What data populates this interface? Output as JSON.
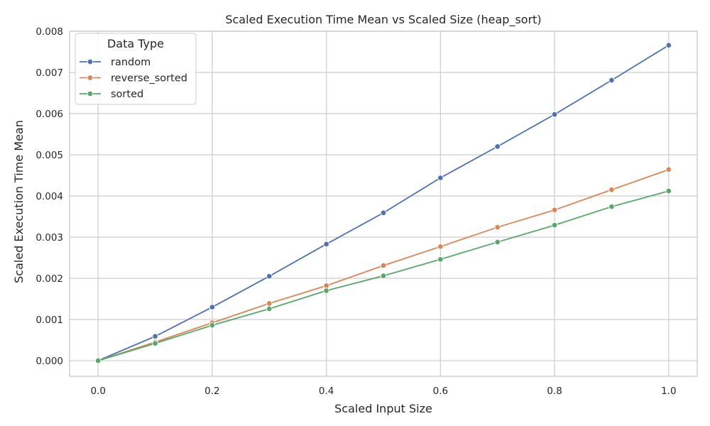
{
  "chart_data": {
    "type": "line",
    "title": "Scaled Execution Time Mean vs Scaled Size (heap_sort)",
    "xlabel": "Scaled Input Size",
    "ylabel": "Scaled Execution Time Mean",
    "xlim": [
      -0.05,
      1.05
    ],
    "ylim": [
      -0.00038,
      0.008
    ],
    "xticks": [
      0.0,
      0.2,
      0.4,
      0.6,
      0.8,
      1.0
    ],
    "xtick_labels": [
      "0.0",
      "0.2",
      "0.4",
      "0.6",
      "0.8",
      "1.0"
    ],
    "yticks": [
      0.0,
      0.001,
      0.002,
      0.003,
      0.004,
      0.005,
      0.006,
      0.007,
      0.008
    ],
    "ytick_labels": [
      "0.000",
      "0.001",
      "0.002",
      "0.003",
      "0.004",
      "0.005",
      "0.006",
      "0.007",
      "0.008"
    ],
    "grid": true,
    "legend": {
      "title": "Data Type",
      "placement": "top-left"
    },
    "x": [
      0.0,
      0.1,
      0.2,
      0.3,
      0.4,
      0.5,
      0.6,
      0.7,
      0.8,
      0.9,
      1.0
    ],
    "series": [
      {
        "name": "random",
        "color": "#4c72b0",
        "values": [
          0.0,
          0.00059,
          0.0013,
          0.00205,
          0.00283,
          0.00359,
          0.00444,
          0.0052,
          0.00598,
          0.00681,
          0.00766
        ]
      },
      {
        "name": "reverse_sorted",
        "color": "#dd8452",
        "values": [
          0.0,
          0.00045,
          0.00092,
          0.00139,
          0.00182,
          0.00231,
          0.00277,
          0.00324,
          0.00366,
          0.00415,
          0.00464
        ]
      },
      {
        "name": "sorted",
        "color": "#55a868",
        "values": [
          0.0,
          0.00042,
          0.00086,
          0.00126,
          0.0017,
          0.00206,
          0.00246,
          0.00288,
          0.00329,
          0.00374,
          0.00412
        ]
      }
    ]
  }
}
